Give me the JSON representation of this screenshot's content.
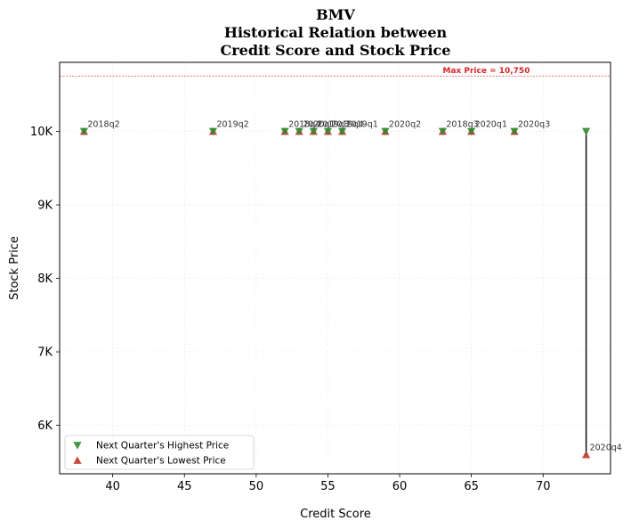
{
  "chart_data": {
    "type": "scatter",
    "title": [
      "BMV",
      "Historical Relation between",
      "Credit Score and Stock Price"
    ],
    "xlabel": "Credit Score",
    "ylabel": "Stock Price",
    "xlim": [
      36.3,
      74.7
    ],
    "ylim": [
      5340,
      10940
    ],
    "x_ticks": [
      40,
      45,
      50,
      55,
      60,
      65,
      70
    ],
    "y_ticks": [
      {
        "value": 6000,
        "label": "6K"
      },
      {
        "value": 7000,
        "label": "7K"
      },
      {
        "value": 8000,
        "label": "8K"
      },
      {
        "value": 9000,
        "label": "9K"
      },
      {
        "value": 10000,
        "label": "10K"
      }
    ],
    "grid": true,
    "max_line": {
      "value": 10750,
      "label": "Max Price = 10,750",
      "color": "#d62728"
    },
    "colors": {
      "high": "#2e8b2e",
      "low": "#c0392b",
      "range_line": "#000000"
    },
    "legend": {
      "placement": "lower-left",
      "entries": [
        "Next Quarter's Highest Price",
        "Next Quarter's Lowest Price"
      ]
    },
    "series": [
      {
        "name": "Next Quarter's Highest Price",
        "marker": "triangle-down",
        "points": [
          [
            38,
            10000
          ],
          [
            47,
            10000
          ],
          [
            52,
            10000
          ],
          [
            53,
            10000
          ],
          [
            54,
            10000
          ],
          [
            55,
            10000
          ],
          [
            56,
            10000
          ],
          [
            59,
            10000
          ],
          [
            63,
            10000
          ],
          [
            65,
            10000
          ],
          [
            68,
            10000
          ],
          [
            73,
            10000
          ]
        ]
      },
      {
        "name": "Next Quarter's Lowest Price",
        "marker": "triangle-up",
        "points": [
          [
            38,
            10000
          ],
          [
            47,
            10000
          ],
          [
            52,
            10000
          ],
          [
            53,
            10000
          ],
          [
            54,
            10000
          ],
          [
            55,
            10000
          ],
          [
            56,
            10000
          ],
          [
            59,
            10000
          ],
          [
            63,
            10000
          ],
          [
            65,
            10000
          ],
          [
            68,
            10000
          ],
          [
            73,
            5600
          ]
        ]
      }
    ],
    "annotations": [
      {
        "x": 38,
        "y": 10000,
        "text": "2018q2"
      },
      {
        "x": 47,
        "y": 10000,
        "text": "2019q2"
      },
      {
        "x": 52,
        "y": 10000,
        "text": "2018q4"
      },
      {
        "x": 53,
        "y": 10000,
        "text": "2020q1"
      },
      {
        "x": 54,
        "y": 10000,
        "text": "2019q3"
      },
      {
        "x": 55,
        "y": 10000,
        "text": "2019q4"
      },
      {
        "x": 56,
        "y": 10000,
        "text": "2019q1"
      },
      {
        "x": 59,
        "y": 10000,
        "text": "2020q2"
      },
      {
        "x": 63,
        "y": 10000,
        "text": "2018q3"
      },
      {
        "x": 65,
        "y": 10000,
        "text": "2020q1"
      },
      {
        "x": 68,
        "y": 10000,
        "text": "2020q3"
      },
      {
        "x": 73,
        "y": 5600,
        "text": "2020q4"
      }
    ],
    "range_lines": [
      {
        "x": 73,
        "y1": 5600,
        "y2": 10000
      }
    ]
  }
}
